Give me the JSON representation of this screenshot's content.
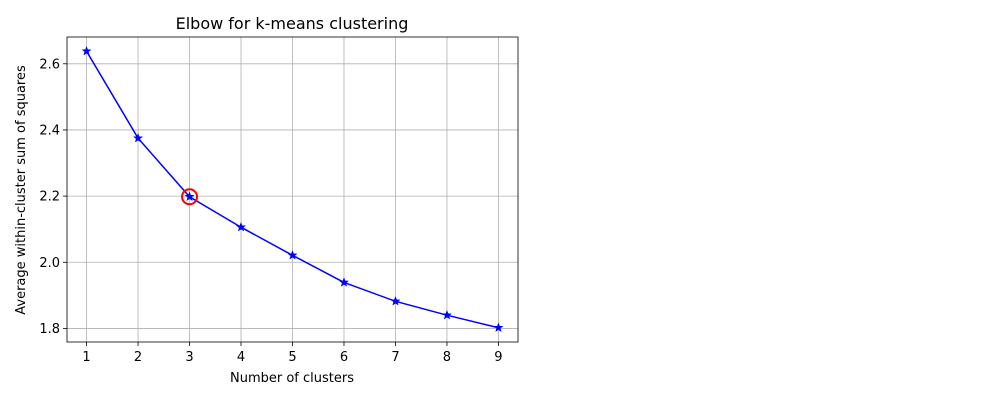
{
  "chart_data": {
    "type": "line",
    "title": "Elbow for k-means clustering",
    "xlabel": "Number of clusters",
    "ylabel": "Average within-cluster sum of squares",
    "x": [
      1,
      2,
      3,
      4,
      5,
      6,
      7,
      8,
      9
    ],
    "series": [
      {
        "values": [
          2.638,
          2.375,
          2.198,
          2.106,
          2.021,
          1.939,
          1.882,
          1.84,
          1.802
        ]
      }
    ],
    "xlim": [
      0.62,
      9.38
    ],
    "ylim": [
      1.759,
      2.681
    ],
    "xticks": [
      "1",
      "2",
      "3",
      "4",
      "5",
      "6",
      "7",
      "8",
      "9"
    ],
    "yticks": [
      "1.8",
      "2.0",
      "2.2",
      "2.4",
      "2.6"
    ],
    "grid": true,
    "highlight": {
      "x": 3,
      "y": 2.198
    },
    "colors": {
      "line": "#0000ff",
      "highlight": "#ff0000",
      "grid": "#b0b0b0"
    }
  }
}
